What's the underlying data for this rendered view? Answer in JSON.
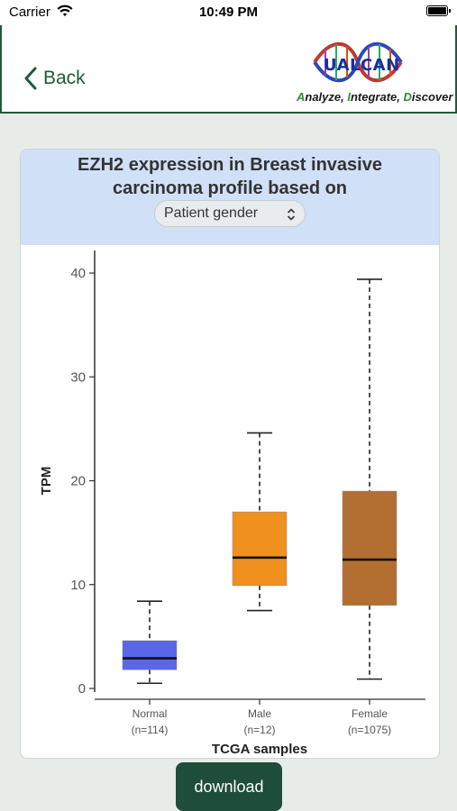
{
  "status": {
    "carrier": "Carrier",
    "time": "10:49 PM"
  },
  "nav": {
    "back_label": "Back",
    "logo_text": "UALCAN",
    "tagline_parts": [
      "A",
      "nalyze, ",
      "I",
      "ntegrate, ",
      "D",
      "iscover"
    ]
  },
  "card": {
    "title_line1": "EZH2 expression in Breast invasive",
    "title_line2": "carcinoma profile based on",
    "select_value": "Patient gender"
  },
  "chart_data": {
    "type": "boxplot",
    "xlabel": "TCGA samples",
    "ylabel": "TPM",
    "ylim": [
      0,
      42
    ],
    "yticks": [
      0,
      10,
      20,
      30,
      40
    ],
    "categories": [
      "Normal",
      "Male",
      "Female"
    ],
    "counts": [
      "(n=114)",
      "(n=12)",
      "(n=1075)"
    ],
    "colors": [
      "#5a66e8",
      "#f0901e",
      "#b36f32"
    ],
    "boxes": [
      {
        "min": 0.5,
        "q1": 1.8,
        "median": 2.9,
        "q3": 4.6,
        "max": 8.4
      },
      {
        "min": 7.5,
        "q1": 9.9,
        "median": 12.6,
        "q3": 17.0,
        "max": 24.6
      },
      {
        "min": 0.9,
        "q1": 8.0,
        "median": 12.4,
        "q3": 19.0,
        "max": 39.4
      }
    ]
  },
  "download_label": "download"
}
